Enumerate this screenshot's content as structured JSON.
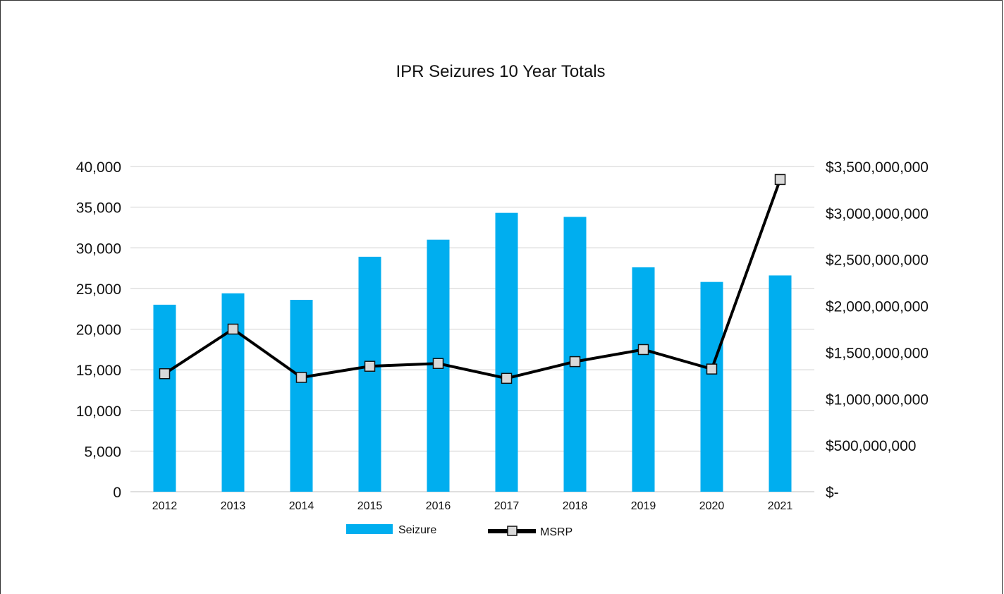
{
  "chart_data": {
    "type": "bar",
    "title": "IPR Seizures 10 Year Totals",
    "categories": [
      "2012",
      "2013",
      "2014",
      "2015",
      "2016",
      "2017",
      "2018",
      "2019",
      "2020",
      "2021"
    ],
    "series": [
      {
        "name": "Seizure",
        "type": "bar",
        "axis": "left",
        "color": "#00AEEF",
        "values": [
          23000,
          24400,
          23600,
          28900,
          31000,
          34300,
          33800,
          27600,
          25800,
          26600
        ]
      },
      {
        "name": "MSRP",
        "type": "line",
        "axis": "right",
        "color": "#000000",
        "marker_color": "#D9D9D9",
        "values": [
          1270000000,
          1750000000,
          1230000000,
          1350000000,
          1380000000,
          1220000000,
          1400000000,
          1530000000,
          1320000000,
          3360000000
        ]
      }
    ],
    "left_axis": {
      "ylim": [
        0,
        40000
      ],
      "ticks": [
        "0",
        "5,000",
        "10,000",
        "15,000",
        "20,000",
        "25,000",
        "30,000",
        "35,000",
        "40,000"
      ]
    },
    "right_axis": {
      "ylim": [
        0,
        3500000000
      ],
      "ticks": [
        "$-",
        "$500,000,000",
        "$1,000,000,000",
        "$1,500,000,000",
        "$2,000,000,000",
        "$2,500,000,000",
        "$3,000,000,000",
        "$3,500,000,000"
      ]
    },
    "grid": true,
    "legend_position": "bottom"
  }
}
